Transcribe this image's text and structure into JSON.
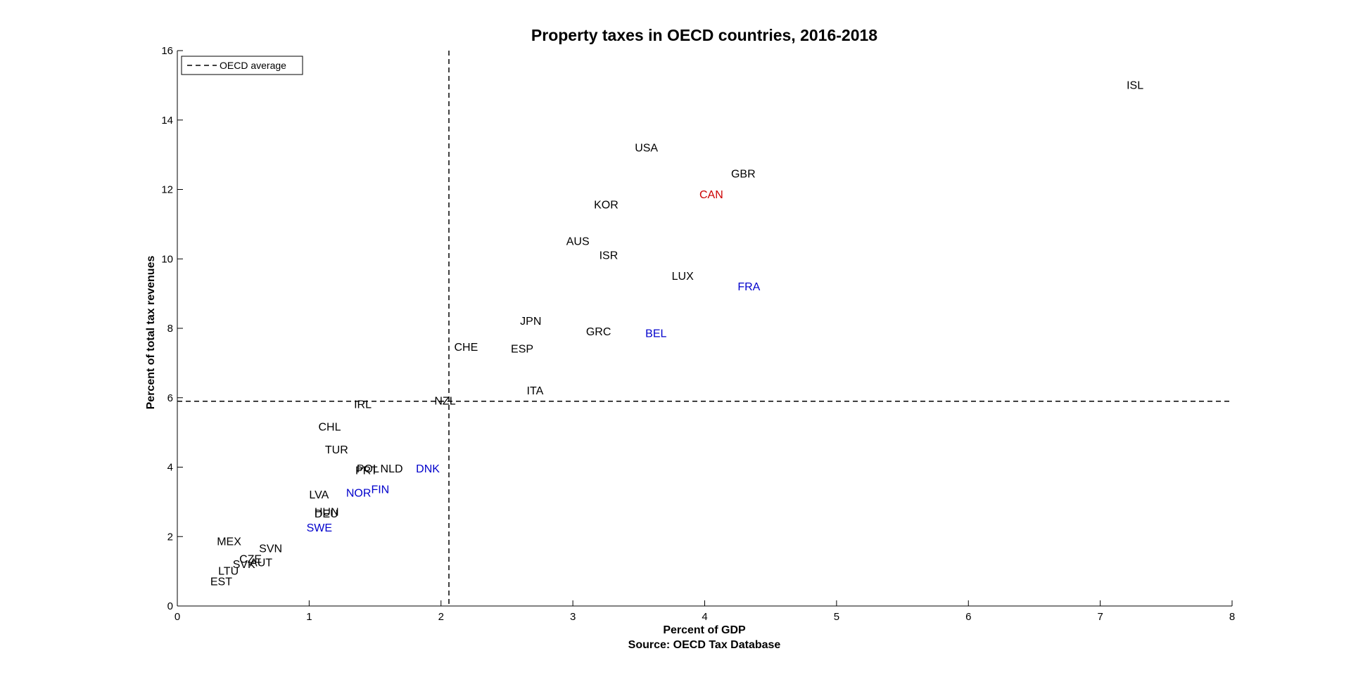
{
  "chart_data": {
    "type": "scatter",
    "title": "Property taxes in OECD countries, 2016-2018",
    "xlabel": "Percent of GDP",
    "xlabel_source": "Source: OECD Tax Database",
    "ylabel": "Percent of total tax revenues",
    "xlim": [
      0,
      8
    ],
    "ylim": [
      0,
      16
    ],
    "xticks": [
      "0",
      "1",
      "2",
      "3",
      "4",
      "5",
      "6",
      "7",
      "8"
    ],
    "yticks": [
      "0",
      "2",
      "4",
      "6",
      "8",
      "10",
      "12",
      "14",
      "16"
    ],
    "grid": false,
    "legend": {
      "position": "top-left",
      "entries": [
        "OECD average"
      ]
    },
    "reference_lines": {
      "x_average": 2.06,
      "y_average": 5.9
    },
    "colors": {
      "default": "#000000",
      "blue": "#0000cc",
      "red": "#cc0000"
    },
    "points": [
      {
        "label": "ISL",
        "x": 7.2,
        "y": 15.0,
        "color": "#000000"
      },
      {
        "label": "USA",
        "x": 3.47,
        "y": 13.2,
        "color": "#000000"
      },
      {
        "label": "GBR",
        "x": 4.2,
        "y": 12.45,
        "color": "#000000"
      },
      {
        "label": "CAN",
        "x": 3.96,
        "y": 11.85,
        "color": "#cc0000"
      },
      {
        "label": "KOR",
        "x": 3.16,
        "y": 11.55,
        "color": "#000000"
      },
      {
        "label": "AUS",
        "x": 2.95,
        "y": 10.5,
        "color": "#000000"
      },
      {
        "label": "ISR",
        "x": 3.2,
        "y": 10.1,
        "color": "#000000"
      },
      {
        "label": "LUX",
        "x": 3.75,
        "y": 9.5,
        "color": "#000000"
      },
      {
        "label": "FRA",
        "x": 4.25,
        "y": 9.2,
        "color": "#0000cc"
      },
      {
        "label": "JPN",
        "x": 2.6,
        "y": 8.2,
        "color": "#000000"
      },
      {
        "label": "GRC",
        "x": 3.1,
        "y": 7.9,
        "color": "#000000"
      },
      {
        "label": "BEL",
        "x": 3.55,
        "y": 7.85,
        "color": "#0000cc"
      },
      {
        "label": "CHE",
        "x": 2.1,
        "y": 7.45,
        "color": "#000000"
      },
      {
        "label": "ESP",
        "x": 2.53,
        "y": 7.4,
        "color": "#000000"
      },
      {
        "label": "ITA",
        "x": 2.65,
        "y": 6.2,
        "color": "#000000"
      },
      {
        "label": "NZL",
        "x": 1.95,
        "y": 5.9,
        "color": "#000000"
      },
      {
        "label": "IRL",
        "x": 1.34,
        "y": 5.8,
        "color": "#000000"
      },
      {
        "label": "CHL",
        "x": 1.07,
        "y": 5.15,
        "color": "#000000"
      },
      {
        "label": "TUR",
        "x": 1.12,
        "y": 4.5,
        "color": "#000000"
      },
      {
        "label": "PRT",
        "x": 1.35,
        "y": 3.9,
        "color": "#000000"
      },
      {
        "label": "POL",
        "x": 1.36,
        "y": 3.95,
        "color": "#000000"
      },
      {
        "label": "NLD",
        "x": 1.54,
        "y": 3.95,
        "color": "#000000"
      },
      {
        "label": "DNK",
        "x": 1.81,
        "y": 3.95,
        "color": "#0000cc"
      },
      {
        "label": "NOR",
        "x": 1.28,
        "y": 3.25,
        "color": "#0000cc"
      },
      {
        "label": "FIN",
        "x": 1.47,
        "y": 3.35,
        "color": "#0000cc"
      },
      {
        "label": "LVA",
        "x": 1.0,
        "y": 3.2,
        "color": "#000000"
      },
      {
        "label": "HUN",
        "x": 1.04,
        "y": 2.7,
        "color": "#000000"
      },
      {
        "label": "DEU",
        "x": 1.04,
        "y": 2.65,
        "color": "#000000"
      },
      {
        "label": "SWE",
        "x": 0.98,
        "y": 2.25,
        "color": "#0000cc"
      },
      {
        "label": "MEX",
        "x": 0.3,
        "y": 1.85,
        "color": "#000000"
      },
      {
        "label": "SVN",
        "x": 0.62,
        "y": 1.65,
        "color": "#000000"
      },
      {
        "label": "CZE",
        "x": 0.47,
        "y": 1.35,
        "color": "#000000"
      },
      {
        "label": "SVK",
        "x": 0.42,
        "y": 1.2,
        "color": "#000000"
      },
      {
        "label": "AUT",
        "x": 0.55,
        "y": 1.25,
        "color": "#000000"
      },
      {
        "label": "LTU",
        "x": 0.31,
        "y": 1.0,
        "color": "#000000"
      },
      {
        "label": "EST",
        "x": 0.25,
        "y": 0.7,
        "color": "#000000"
      }
    ]
  }
}
